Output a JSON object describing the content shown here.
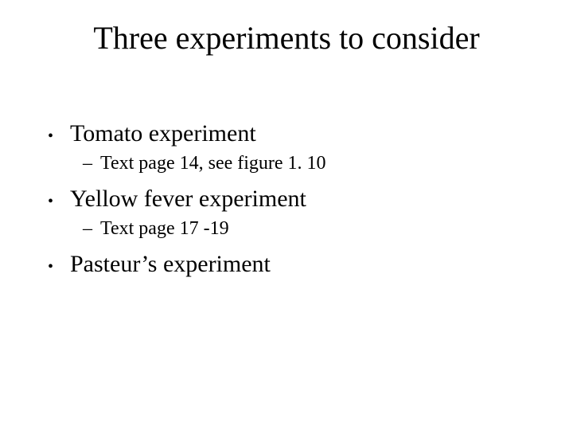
{
  "colors": {
    "background": "#ffffff",
    "text": "#000000"
  },
  "typography": {
    "font_family": "Times New Roman",
    "title_fontsize": 40,
    "bullet_l1_fontsize": 30,
    "bullet_l2_fontsize": 24
  },
  "title": "Three experiments to consider",
  "items": [
    {
      "label": "Tomato experiment",
      "sub": "Text page 14, see figure 1. 10"
    },
    {
      "label": "Yellow fever experiment",
      "sub": "Text page 17 -19"
    },
    {
      "label": "Pasteur’s experiment",
      "sub": null
    }
  ],
  "markers": {
    "l1": "•",
    "l2": "–"
  }
}
